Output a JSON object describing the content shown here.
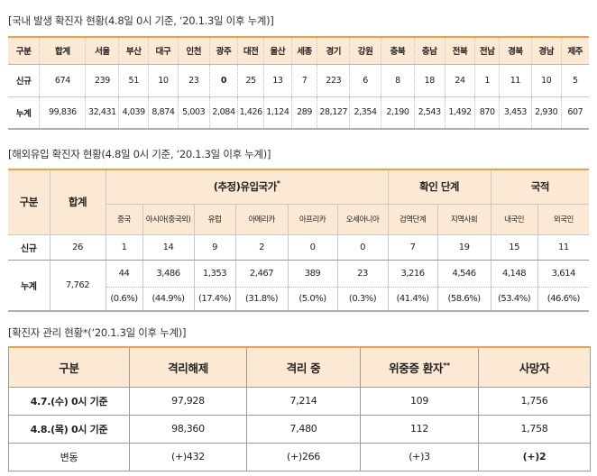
{
  "section1": {
    "title": "국내 발생 확진자 현황(4.8일 0시 기준, ‘20.1.3일 이후 누계)",
    "headers": [
      "구분",
      "합계",
      "서울",
      "부산",
      "대구",
      "인천",
      "광주",
      "대전",
      "울산",
      "세종",
      "경기",
      "강원",
      "충북",
      "충남",
      "전북",
      "전남",
      "경북",
      "경남",
      "제주"
    ],
    "rows": [
      {
        "label": "신규",
        "values": [
          "674",
          "239",
          "51",
          "10",
          "23",
          "0",
          "25",
          "13",
          "7",
          "223",
          "6",
          "8",
          "18",
          "24",
          "1",
          "11",
          "10",
          "5"
        ]
      },
      {
        "label": "누계",
        "values": [
          "99,836",
          "32,431",
          "4,039",
          "8,874",
          "5,003",
          "2,084",
          "1,426",
          "1,124",
          "289",
          "28,127",
          "2,354",
          "2,190",
          "2,543",
          "1,492",
          "870",
          "3,453",
          "2,930",
          "607"
        ]
      }
    ]
  },
  "section2": {
    "title": "해외유입 확진자 현황(4.8일 0시 기준, ‘20.1.3일 이후 누계)",
    "h_gubun": "구분",
    "h_total": "합계",
    "h_origin": "(추정)유입국가",
    "h_origin_mark": "*",
    "h_stage": "확인 단계",
    "h_nation": "국적",
    "sub_headers": [
      "중국",
      "아시아(중국외)",
      "유럽",
      "아메리카",
      "아프리카",
      "오세아니아",
      "검역단계",
      "지역사회",
      "내국인",
      "외국인"
    ],
    "new_row": {
      "label": "신규",
      "total": "26",
      "values": [
        "1",
        "14",
        "9",
        "2",
        "0",
        "0",
        "7",
        "19",
        "15",
        "11"
      ]
    },
    "cum_row": {
      "label": "누계",
      "total": "7,762",
      "values": [
        "44",
        "3,486",
        "1,353",
        "2,467",
        "389",
        "23",
        "3,216",
        "4,546",
        "4,148",
        "3,614"
      ],
      "pcts": [
        "(0.6%)",
        "(44.9%)",
        "(17.4%)",
        "(31.8%)",
        "(5.0%)",
        "(0.3%)",
        "(41.4%)",
        "(58.6%)",
        "(53.4%)",
        "(46.6%)"
      ]
    }
  },
  "section3": {
    "title": "확진자 관리 현황*(‘20.1.3일 이후 누계)",
    "headers": [
      "구분",
      "격리해제",
      "격리 중",
      "위중증 환자",
      "사망자"
    ],
    "severe_mark": "**",
    "rows": [
      {
        "label": "4.7.(수) 0시 기준",
        "values": [
          "97,928",
          "7,214",
          "109",
          "1,756"
        ]
      },
      {
        "label": "4.8.(목) 0시 기준",
        "values": [
          "98,360",
          "7,480",
          "112",
          "1,758"
        ]
      },
      {
        "label": "변동",
        "values": [
          "(+)432",
          "(+)266",
          "(+)3",
          "(+)2"
        ]
      }
    ]
  }
}
